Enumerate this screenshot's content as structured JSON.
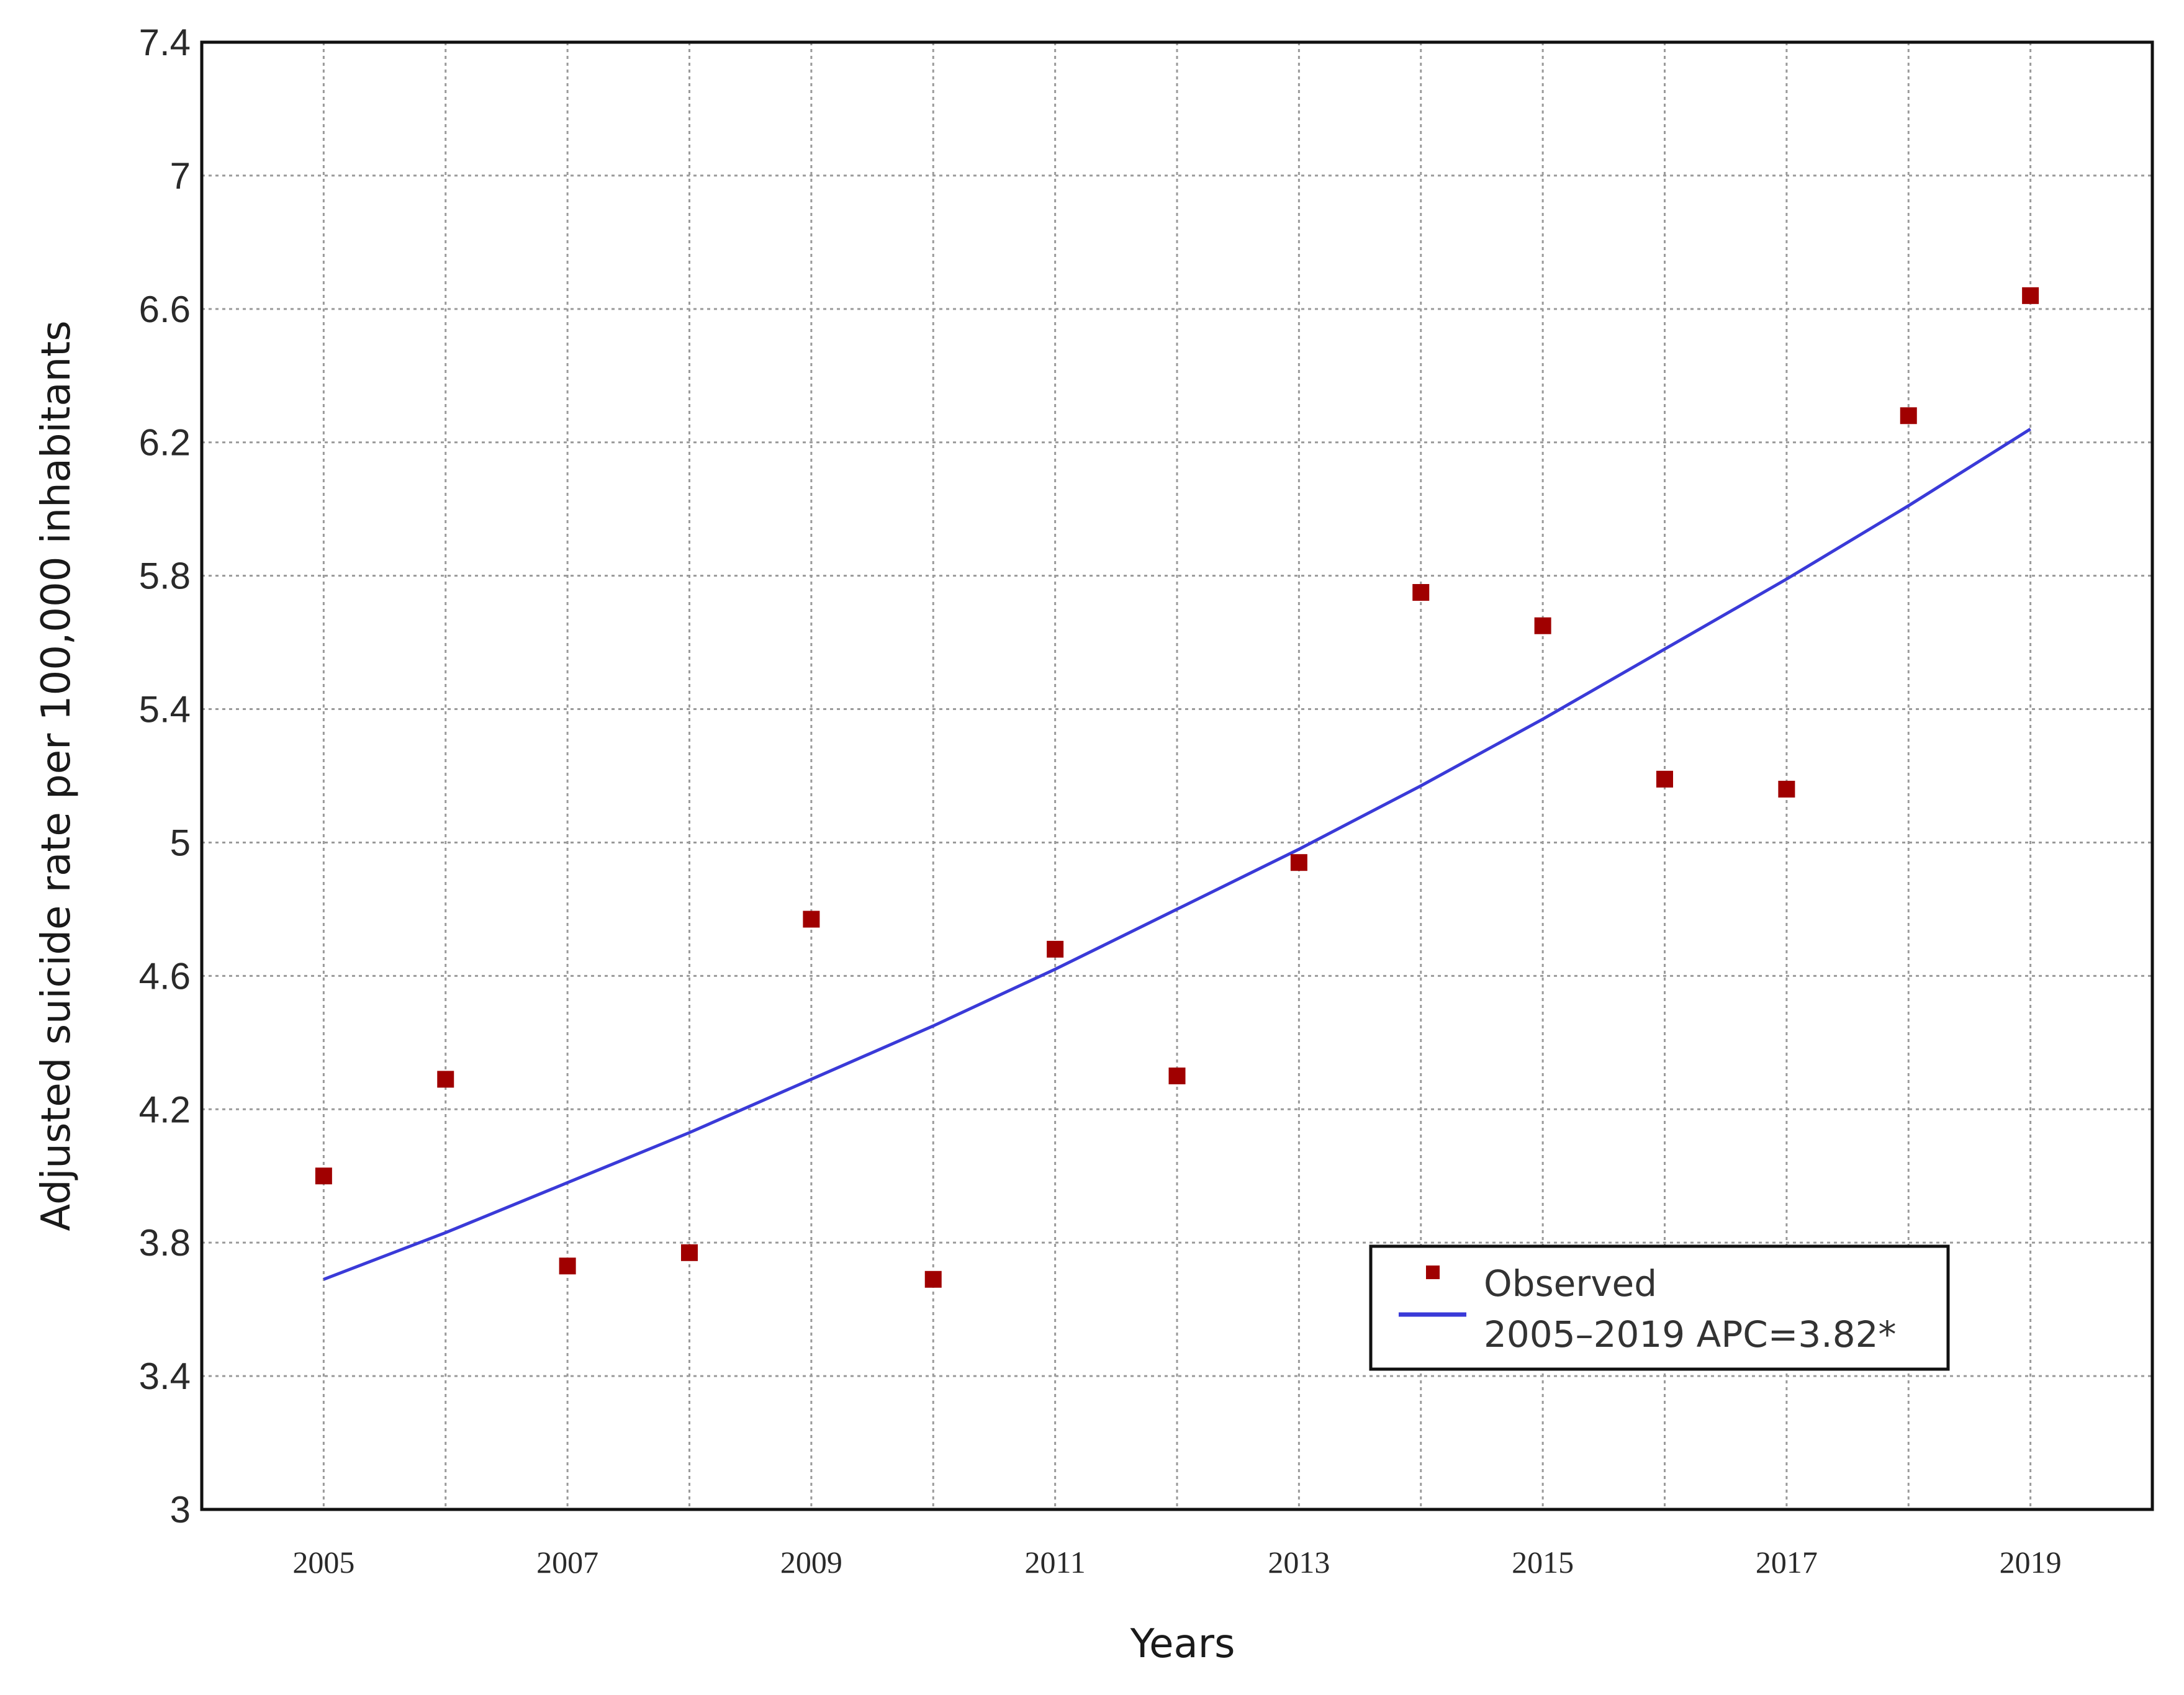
{
  "chart_data": {
    "type": "scatter",
    "title": "",
    "xlabel": "Years",
    "ylabel": "Adjusted suicide rate per 100,000 inhabitants",
    "xlim": [
      2004,
      2020
    ],
    "ylim": [
      3,
      7.4
    ],
    "x_ticks": [
      "2005",
      "2007",
      "2009",
      "2011",
      "2013",
      "2015",
      "2017",
      "2019"
    ],
    "y_ticks": [
      "3",
      "3.4",
      "3.8",
      "4.2",
      "4.6",
      "5",
      "5.4",
      "5.8",
      "6.2",
      "6.6",
      "7",
      "7.4"
    ],
    "grid": true,
    "legend": "bottom-right",
    "series": [
      {
        "name": "Observed",
        "kind": "points",
        "marker": "square",
        "color": "#a00000",
        "x": [
          2005,
          2006,
          2007,
          2008,
          2009,
          2010,
          2011,
          2012,
          2013,
          2014,
          2015,
          2016,
          2017,
          2018,
          2019
        ],
        "y": [
          4.0,
          4.29,
          3.73,
          3.77,
          4.77,
          3.69,
          4.68,
          4.3,
          4.94,
          5.75,
          5.65,
          5.19,
          5.16,
          6.28,
          6.64
        ]
      },
      {
        "name": "2005–2019 APC=3.82*",
        "kind": "fitted-line",
        "color": "#3a3ad8",
        "x": [
          2005,
          2006,
          2007,
          2008,
          2009,
          2010,
          2011,
          2012,
          2013,
          2014,
          2015,
          2016,
          2017,
          2018,
          2019
        ],
        "y": [
          3.69,
          3.83,
          3.98,
          4.13,
          4.29,
          4.45,
          4.62,
          4.8,
          4.98,
          5.17,
          5.37,
          5.58,
          5.79,
          6.01,
          6.24
        ]
      }
    ]
  }
}
